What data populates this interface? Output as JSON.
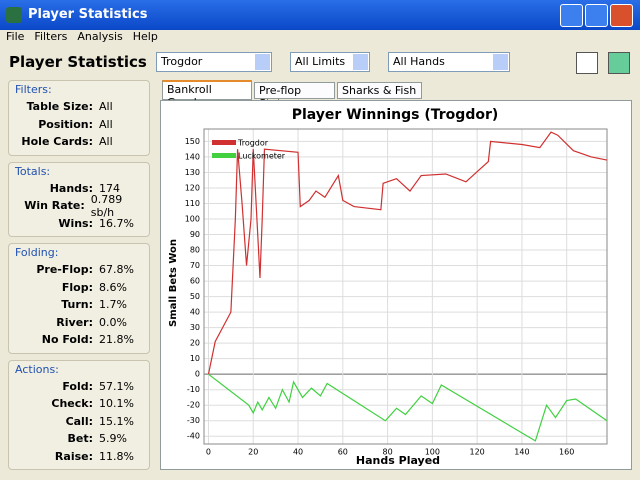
{
  "window": {
    "title": "Player Statistics"
  },
  "menu": [
    "File",
    "Filters",
    "Analysis",
    "Help"
  ],
  "toolbar": {
    "title": "Player Statistics",
    "player": "Trogdor",
    "limits": "All Limits",
    "hands": "All Hands"
  },
  "sidebar": [
    {
      "title": "Filters:",
      "rows": [
        [
          "Table Size:",
          "All"
        ],
        [
          "Position:",
          "All"
        ],
        [
          "Hole Cards:",
          "All"
        ]
      ]
    },
    {
      "title": "Totals:",
      "rows": [
        [
          "Hands:",
          "174"
        ],
        [
          "Win Rate:",
          "0.789 sb/h"
        ],
        [
          "Wins:",
          "16.7%"
        ]
      ]
    },
    {
      "title": "Folding:",
      "rows": [
        [
          "Pre-Flop:",
          "67.8%"
        ],
        [
          "Flop:",
          "8.6%"
        ],
        [
          "Turn:",
          "1.7%"
        ],
        [
          "River:",
          "0.0%"
        ],
        [
          "No Fold:",
          "21.8%"
        ]
      ]
    },
    {
      "title": "Actions:",
      "rows": [
        [
          "Fold:",
          "57.1%"
        ],
        [
          "Check:",
          "10.1%"
        ],
        [
          "Call:",
          "15.1%"
        ],
        [
          "Bet:",
          "5.9%"
        ],
        [
          "Raise:",
          "11.8%"
        ]
      ]
    }
  ],
  "tabs": [
    "Bankroll Graph",
    "Pre-flop Stats",
    "Sharks & Fish"
  ],
  "chart_data": {
    "type": "line",
    "title": "Player Winnings (Trogdor)",
    "x_label": "Hands Played",
    "y_label": "Small Bets Won",
    "xlim": [
      -2,
      178
    ],
    "ylim": [
      -45,
      158
    ],
    "xticks": [
      0,
      20,
      40,
      60,
      80,
      100,
      120,
      140,
      160
    ],
    "yticks": [
      -40,
      -30,
      -20,
      -10,
      0,
      10,
      20,
      30,
      40,
      50,
      60,
      70,
      80,
      90,
      100,
      110,
      120,
      130,
      140,
      150
    ],
    "grid": true,
    "legend": "upper left",
    "series": [
      {
        "name": "Trogdor",
        "color": "#d03030",
        "x": [
          0,
          3,
          10,
          12,
          13,
          15,
          17,
          19,
          20,
          22,
          23,
          24,
          25,
          40,
          41,
          45,
          48,
          52,
          58,
          60,
          65,
          77,
          78,
          84,
          90,
          95,
          106,
          115,
          125,
          126,
          140,
          148,
          153,
          156,
          163,
          171,
          178
        ],
        "values": [
          0,
          21,
          40,
          100,
          145,
          110,
          70,
          100,
          145,
          90,
          62,
          100,
          145,
          143,
          108,
          112,
          118,
          114,
          128,
          112,
          108,
          106,
          123,
          126,
          118,
          128,
          129,
          124,
          137,
          150,
          148,
          146,
          156,
          154,
          144,
          140,
          138
        ]
      },
      {
        "name": "Luckometer",
        "color": "#40d040",
        "x": [
          0,
          18,
          20,
          22,
          24,
          27,
          30,
          33,
          36,
          38,
          42,
          46,
          50,
          53,
          79,
          84,
          88,
          95,
          100,
          104,
          146,
          151,
          155,
          160,
          164,
          178
        ],
        "values": [
          0,
          -20,
          -25,
          -18,
          -23,
          -15,
          -22,
          -10,
          -18,
          -5,
          -15,
          -9,
          -14,
          -6,
          -30,
          -22,
          -26,
          -14,
          -19,
          -7,
          -43,
          -20,
          -28,
          -17,
          -16,
          -30
        ]
      }
    ]
  }
}
